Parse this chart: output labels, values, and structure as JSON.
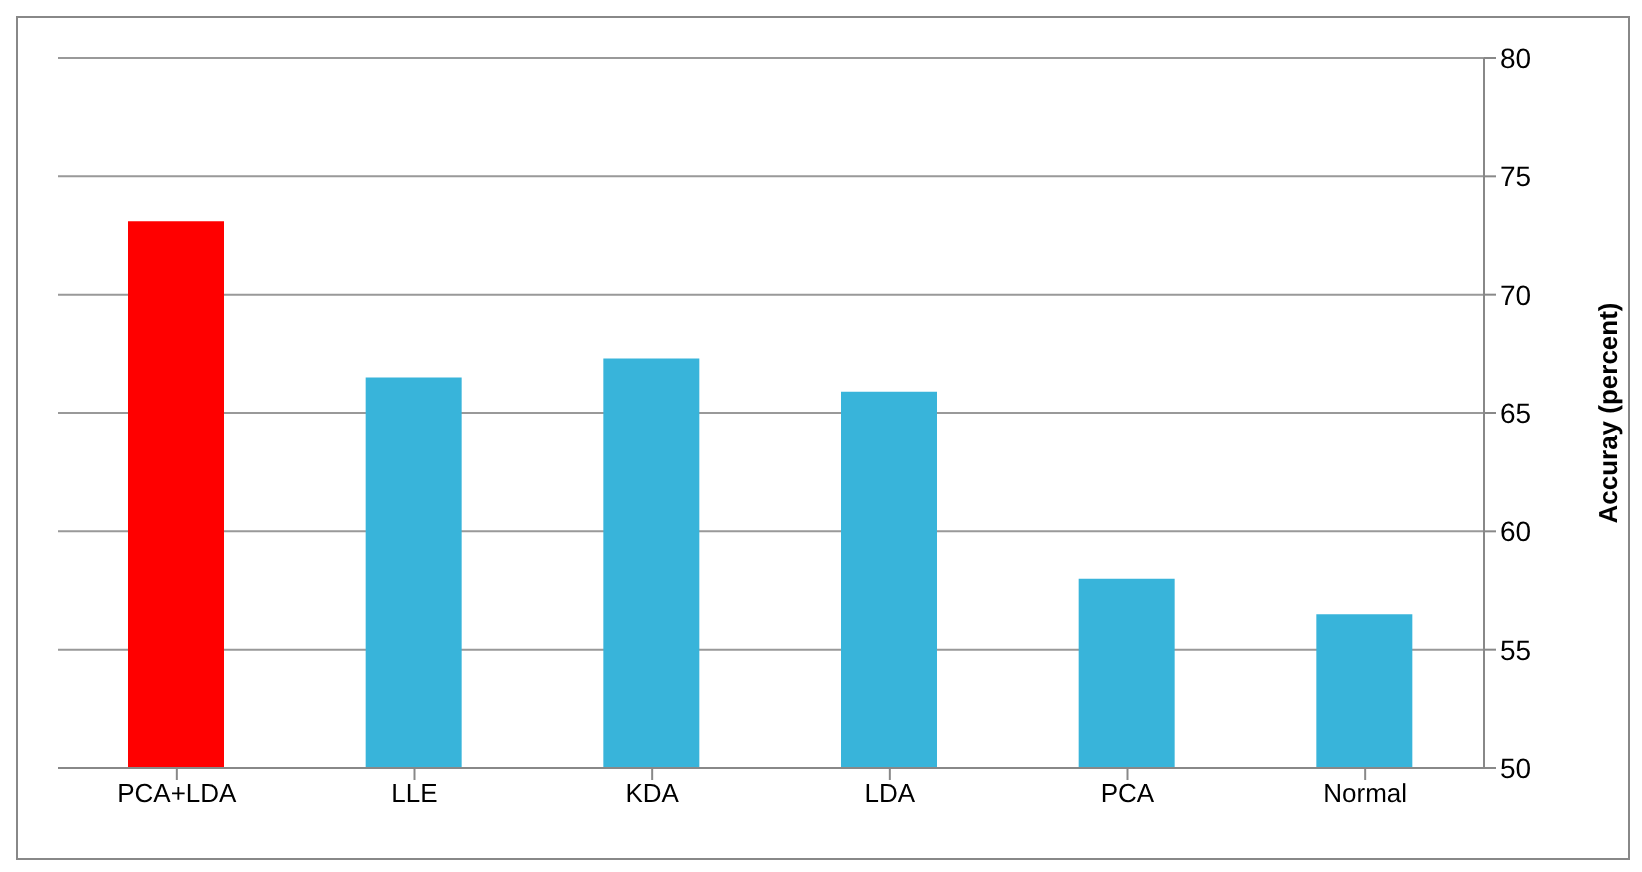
{
  "chart_data": {
    "type": "bar",
    "ylabel": "Accuray (percent)",
    "categories": [
      "PCA+LDA",
      "LLE",
      "KDA",
      "LDA",
      "PCA",
      "Normal"
    ],
    "values": [
      73.1,
      66.5,
      67.3,
      65.9,
      58.0,
      56.5
    ],
    "colors": [
      "#ff0000",
      "#38b4da",
      "#38b4da",
      "#38b4da",
      "#38b4da",
      "#38b4da"
    ],
    "ylim": [
      50,
      80
    ],
    "yticks": [
      50,
      55,
      60,
      65,
      70,
      75,
      80
    ],
    "grid": "y"
  }
}
